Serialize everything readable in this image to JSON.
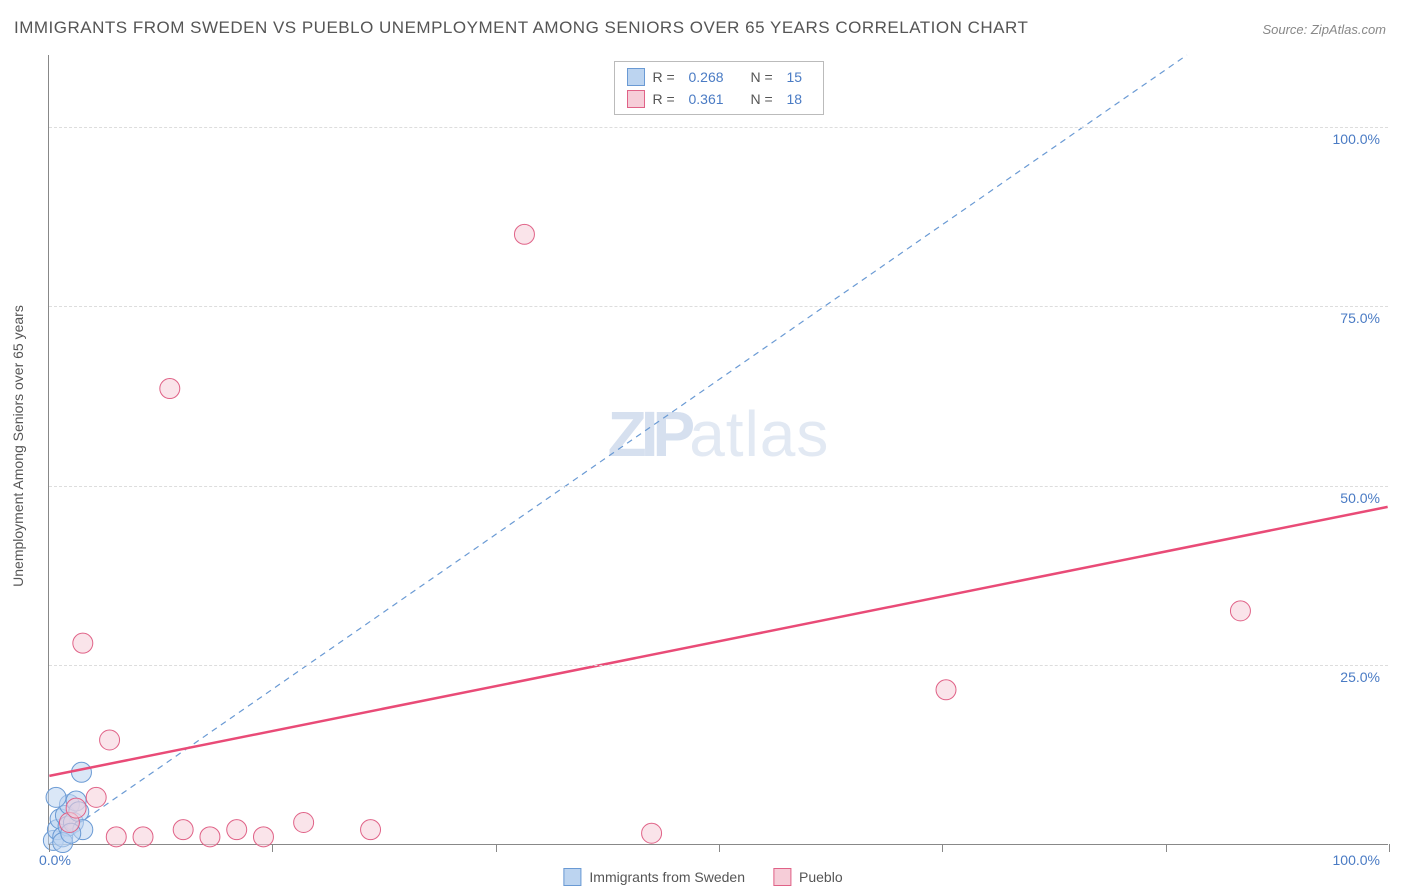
{
  "title": "IMMIGRANTS FROM SWEDEN VS PUEBLO UNEMPLOYMENT AMONG SENIORS OVER 65 YEARS CORRELATION CHART",
  "source_label": "Source: ZipAtlas.com",
  "watermark_main": "ZIP",
  "watermark_sub": "atlas",
  "chart": {
    "type": "scatter",
    "xlim": [
      0,
      100
    ],
    "ylim": [
      0,
      110
    ],
    "x_tick_positions": [
      0,
      16.67,
      33.33,
      50,
      66.67,
      83.33,
      100
    ],
    "y_grid_values": [
      25,
      50,
      75,
      100
    ],
    "y_grid_labels": [
      "25.0%",
      "50.0%",
      "75.0%",
      "100.0%"
    ],
    "x_label_min": "0.0%",
    "x_label_max": "100.0%",
    "y_axis_title": "Unemployment Among Seniors over 65 years",
    "background_color": "#ffffff",
    "grid_color": "#e0e0e0",
    "axis_color": "#888888",
    "label_color": "#4a7bc4",
    "series": [
      {
        "name": "Immigrants from Sweden",
        "legend_label": "Immigrants from Sweden",
        "R_label": "R =",
        "R_value": "0.268",
        "N_label": "N =",
        "N_value": "15",
        "marker_fill": "#bcd4f0",
        "marker_stroke": "#6a9ad4",
        "marker_fill_opacity": 0.55,
        "marker_radius": 10,
        "swatch_fill": "#bcd4f0",
        "swatch_border": "#6a9ad4",
        "trend": {
          "x1": 0,
          "y1": 0,
          "x2": 85,
          "y2": 110,
          "color": "#6a9ad4",
          "dash": "6,5",
          "width": 1.2
        },
        "points": [
          {
            "x": 0.3,
            "y": 0.5
          },
          {
            "x": 0.6,
            "y": 2.0
          },
          {
            "x": 0.8,
            "y": 3.5
          },
          {
            "x": 1.0,
            "y": 1.0
          },
          {
            "x": 1.2,
            "y": 4.0
          },
          {
            "x": 1.4,
            "y": 2.5
          },
          {
            "x": 1.5,
            "y": 5.5
          },
          {
            "x": 1.8,
            "y": 3.0
          },
          {
            "x": 2.0,
            "y": 6.0
          },
          {
            "x": 2.2,
            "y": 4.5
          },
          {
            "x": 2.4,
            "y": 10.0
          },
          {
            "x": 2.5,
            "y": 2.0
          },
          {
            "x": 0.5,
            "y": 6.5
          },
          {
            "x": 1.0,
            "y": 0.2
          },
          {
            "x": 1.6,
            "y": 1.5
          }
        ]
      },
      {
        "name": "Pueblo",
        "legend_label": "Pueblo",
        "R_label": "R =",
        "R_value": "0.361",
        "N_label": "N =",
        "N_value": "18",
        "marker_fill": "#f6cdd8",
        "marker_stroke": "#e06287",
        "marker_fill_opacity": 0.55,
        "marker_radius": 10,
        "swatch_fill": "#f6cdd8",
        "swatch_border": "#e06287",
        "trend": {
          "x1": 0,
          "y1": 9.5,
          "x2": 100,
          "y2": 47,
          "color": "#e94b77",
          "dash": "none",
          "width": 2.5
        },
        "points": [
          {
            "x": 1.5,
            "y": 3.0
          },
          {
            "x": 2.0,
            "y": 5.0
          },
          {
            "x": 2.5,
            "y": 28.0
          },
          {
            "x": 3.5,
            "y": 6.5
          },
          {
            "x": 4.5,
            "y": 14.5
          },
          {
            "x": 5.0,
            "y": 1.0
          },
          {
            "x": 7.0,
            "y": 1.0
          },
          {
            "x": 9.0,
            "y": 63.5
          },
          {
            "x": 10.0,
            "y": 2.0
          },
          {
            "x": 12.0,
            "y": 1.0
          },
          {
            "x": 14.0,
            "y": 2.0
          },
          {
            "x": 16.0,
            "y": 1.0
          },
          {
            "x": 19.0,
            "y": 3.0
          },
          {
            "x": 24.0,
            "y": 2.0
          },
          {
            "x": 35.5,
            "y": 85.0
          },
          {
            "x": 45.0,
            "y": 1.5
          },
          {
            "x": 67.0,
            "y": 21.5
          },
          {
            "x": 89.0,
            "y": 32.5
          }
        ]
      }
    ]
  }
}
